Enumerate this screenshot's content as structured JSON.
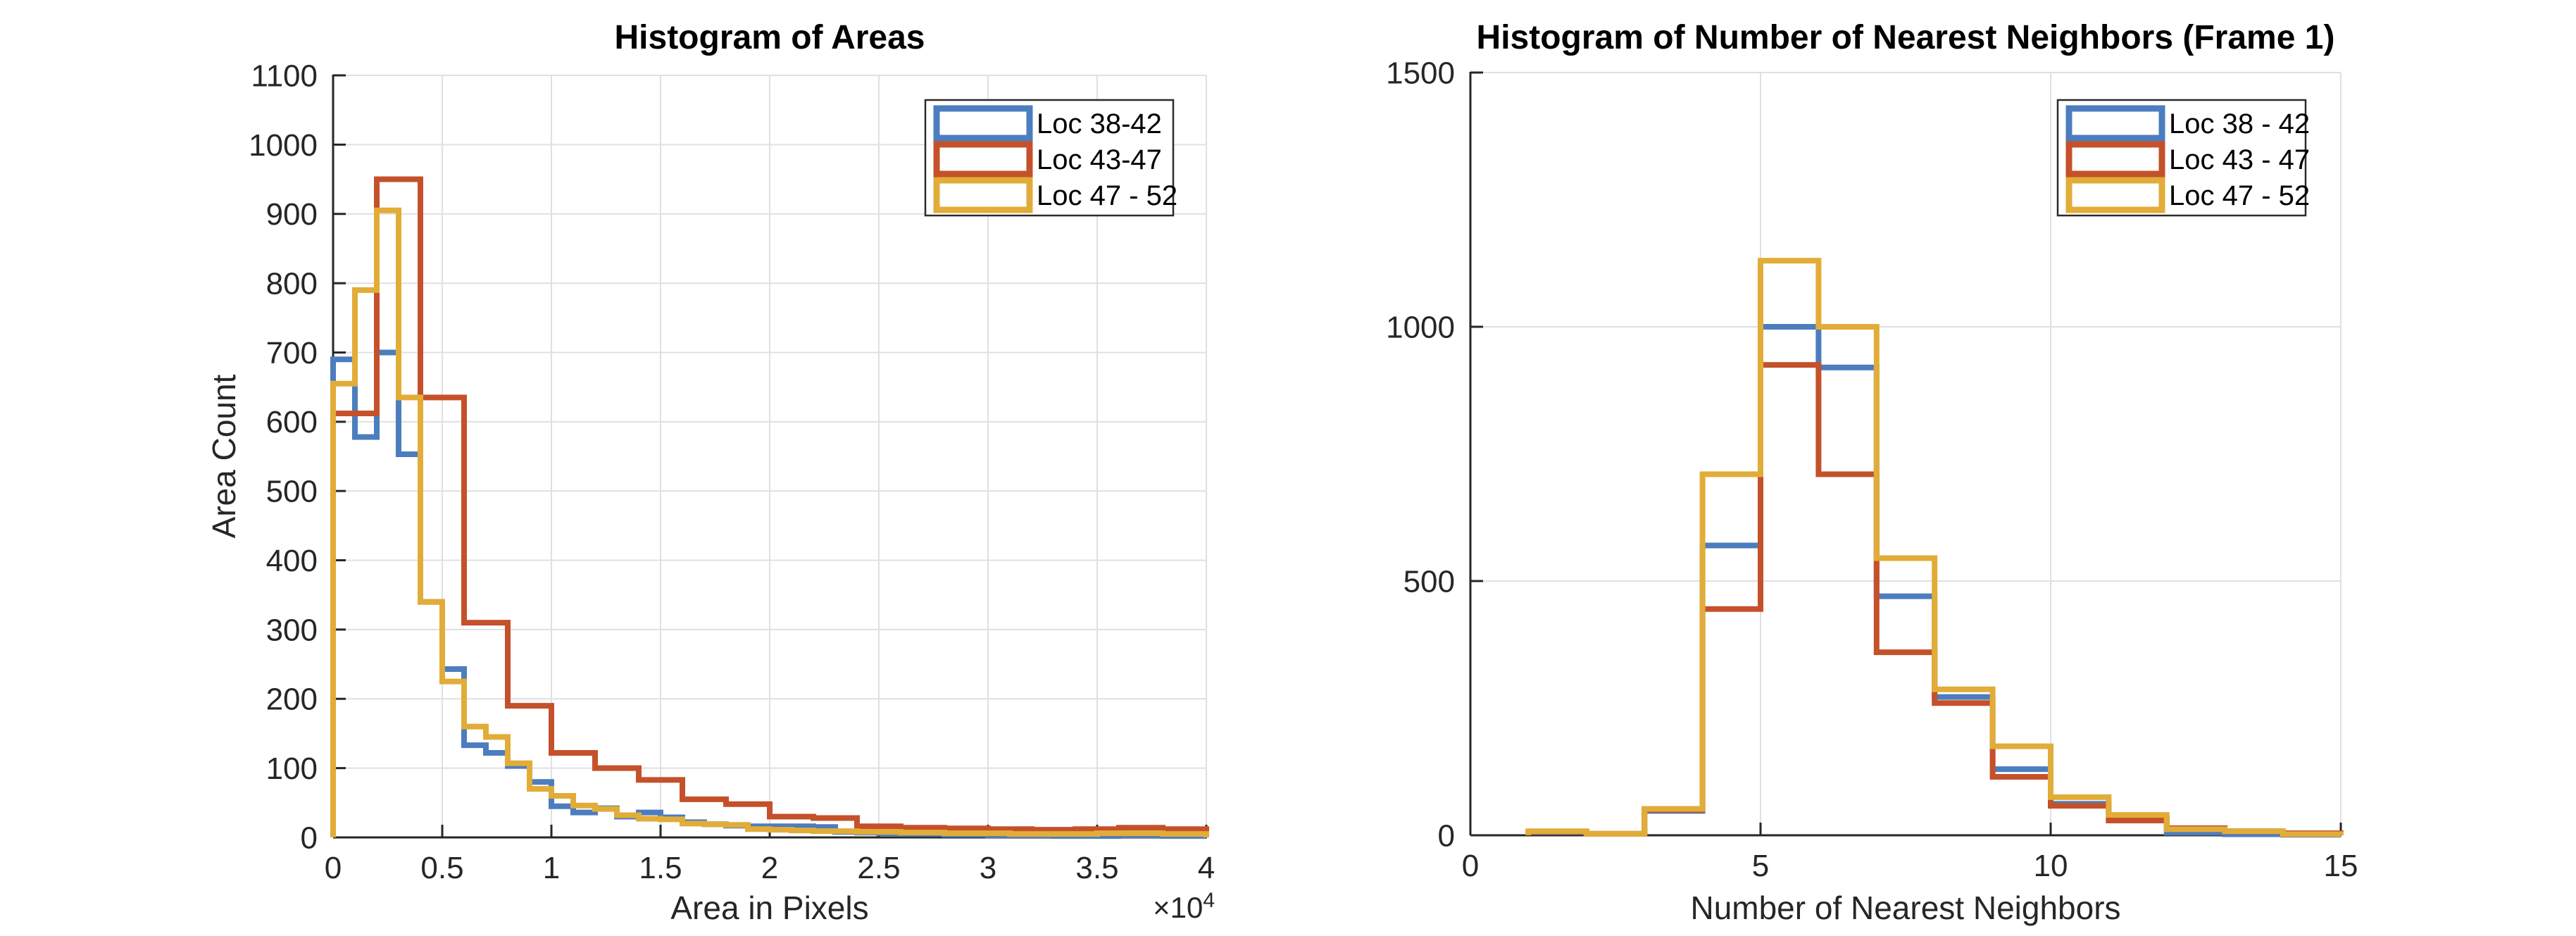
{
  "figure": {
    "background_color": "#ffffff",
    "axis_color": "#262626",
    "grid_color": "#e0e0e0",
    "title_color": "#000000"
  },
  "chart_data": [
    {
      "type": "histogram",
      "display_style": "stairs",
      "title": "Histogram of Areas",
      "xlabel": "Area in Pixels",
      "ylabel": "Area Count",
      "x_offset": {
        "prefix": "×10",
        "exponent": "4"
      },
      "xlim": [
        0,
        4
      ],
      "ylim": [
        0,
        1100
      ],
      "grid": true,
      "xticks": [
        0,
        0.5,
        1,
        1.5,
        2,
        2.5,
        3,
        3.5,
        4
      ],
      "xtick_labels": [
        "0",
        "0.5",
        "1",
        "1.5",
        "2",
        "2.5",
        "3",
        "3.5",
        "4"
      ],
      "yticks": [
        0,
        100,
        200,
        300,
        400,
        500,
        600,
        700,
        800,
        900,
        1000,
        1100
      ],
      "ytick_labels": [
        "0",
        "100",
        "200",
        "300",
        "400",
        "500",
        "600",
        "700",
        "800",
        "900",
        "1000",
        "1100"
      ],
      "legend_location": "northeast",
      "series": [
        {
          "name": "Loc 38-42",
          "color": "#4C7DBE",
          "bin_start": 0,
          "bin_width": 0.1,
          "values": [
            690,
            578,
            700,
            553,
            340,
            243,
            133,
            122,
            103,
            80,
            45,
            36,
            42,
            30,
            36,
            29,
            22,
            19,
            17,
            16,
            16,
            16,
            15,
            8,
            7,
            6,
            5,
            5,
            4,
            4,
            3,
            3,
            3,
            2,
            2,
            2,
            3,
            3,
            2,
            2
          ]
        },
        {
          "name": "Loc 43-47",
          "color": "#C4512A",
          "bin_start": 0,
          "bin_width": 0.2,
          "values": [
            612,
            950,
            635,
            310,
            190,
            122,
            100,
            83,
            55,
            48,
            30,
            28,
            16,
            14,
            13,
            12,
            11,
            12,
            14,
            12
          ]
        },
        {
          "name": "Loc 47 - 52",
          "color": "#E2AC38",
          "bin_start": 0,
          "bin_width": 0.1,
          "values": [
            655,
            790,
            905,
            635,
            340,
            225,
            160,
            145,
            107,
            70,
            60,
            46,
            41,
            32,
            27,
            26,
            20,
            19,
            18,
            12,
            11,
            10,
            9,
            9,
            8,
            8,
            7,
            7,
            6,
            6,
            6,
            5,
            5,
            5,
            5,
            6,
            6,
            6,
            5,
            5
          ]
        }
      ]
    },
    {
      "type": "histogram",
      "display_style": "stairs",
      "title": "Histogram of Number of Nearest Neighbors (Frame 1)",
      "xlabel": "Number of Nearest Neighbors",
      "ylabel": "",
      "x_offset": null,
      "xlim": [
        0,
        15
      ],
      "ylim": [
        0,
        1500
      ],
      "grid": true,
      "xticks": [
        0,
        5,
        10,
        15
      ],
      "xtick_labels": [
        "0",
        "5",
        "10",
        "15"
      ],
      "yticks": [
        0,
        500,
        1000,
        1500
      ],
      "ytick_labels": [
        "0",
        "500",
        "1000",
        "1500"
      ],
      "legend_location": "northeast",
      "series": [
        {
          "name": "Loc 38 - 42",
          "color": "#4C7DBE",
          "bin_start": 1,
          "bin_width": 1,
          "values": [
            6,
            3,
            48,
            570,
            1000,
            920,
            470,
            272,
            130,
            62,
            33,
            5,
            2,
            1
          ]
        },
        {
          "name": "Loc 43 - 47",
          "color": "#C4512A",
          "bin_start": 1,
          "bin_width": 1,
          "values": [
            7,
            3,
            50,
            445,
            925,
            710,
            360,
            260,
            115,
            58,
            29,
            14,
            8,
            4
          ]
        },
        {
          "name": "Loc 47 - 52",
          "color": "#E2AC38",
          "bin_start": 1,
          "bin_width": 1,
          "values": [
            8,
            3,
            52,
            710,
            1130,
            1000,
            545,
            287,
            175,
            75,
            40,
            12,
            8,
            2
          ]
        }
      ]
    }
  ]
}
